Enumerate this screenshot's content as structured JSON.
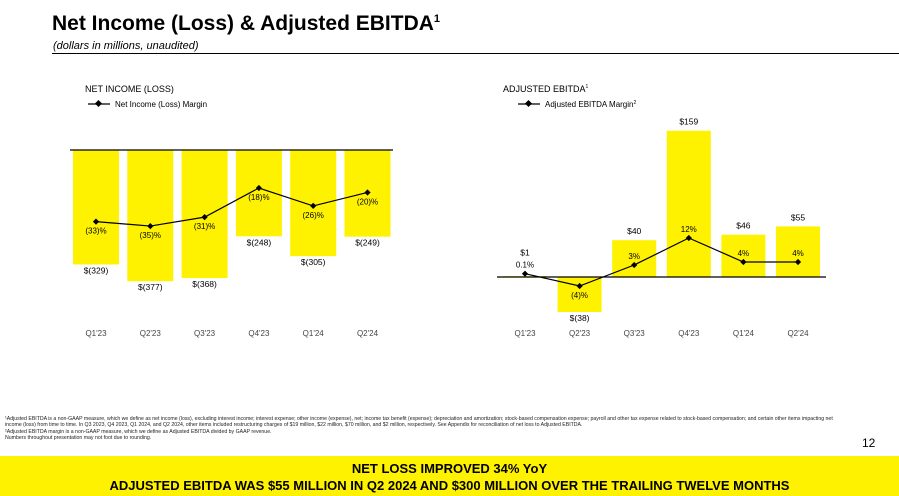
{
  "header": {
    "title": "Net Income (Loss) & Adjusted EBITDA",
    "title_sup": "1",
    "subtitle": "(dollars in millions, unaudited)"
  },
  "colors": {
    "bar": "#fff200",
    "line": "#000000"
  },
  "chart_data": [
    {
      "type": "bar",
      "title": "NET INCOME (LOSS)",
      "legend": "Net Income (Loss) Margin",
      "legend_placement": "top-left",
      "categories": [
        "Q1'23",
        "Q2'23",
        "Q3'23",
        "Q4'23",
        "Q1'24",
        "Q2'24"
      ],
      "series": [
        {
          "name": "Net Income (Loss)",
          "values": [
            -329,
            -377,
            -368,
            -248,
            -305,
            -249
          ],
          "labels": [
            "$(329)",
            "$(377)",
            "$(368)",
            "$(248)",
            "$(305)",
            "$(249)"
          ]
        },
        {
          "name": "Net Income (Loss) Margin",
          "type": "line",
          "values": [
            -33,
            -35,
            -31,
            -18,
            -26,
            -20
          ],
          "labels": [
            "(33)%",
            "(35)%",
            "(31)%",
            "(18)%",
            "(26)%",
            "(20)%"
          ]
        }
      ]
    },
    {
      "type": "bar",
      "title": "ADJUSTED EBITDA",
      "title_sup": "1",
      "legend": "Adjusted EBITDA Margin",
      "legend_sup": "2",
      "legend_placement": "top-left",
      "categories": [
        "Q1'23",
        "Q2'23",
        "Q3'23",
        "Q4'23",
        "Q1'24",
        "Q2'24"
      ],
      "series": [
        {
          "name": "Adjusted EBITDA",
          "values": [
            1,
            -38,
            40,
            159,
            46,
            55
          ],
          "labels": [
            "$1",
            "$(38)",
            "$40",
            "$159",
            "$46",
            "$55"
          ]
        },
        {
          "name": "Adjusted EBITDA Margin",
          "type": "line",
          "values": [
            0.1,
            -4,
            3,
            12,
            4,
            4
          ],
          "labels": [
            "0.1%",
            "(4)%",
            "3%",
            "12%",
            "4%",
            "4%"
          ]
        }
      ]
    }
  ],
  "footnotes": [
    "¹Adjusted EBITDA is a non-GAAP measure, which we define as net income (loss), excluding interest income; interest expense; other income (expense), net; income tax benefit (expense); depreciation and amortization; stock-based compensation expense; payroll and other tax expense related to stock-based compensation; and certain other items impacting net income (loss) from time to time. In Q3 2023, Q4 2023, Q1 2024, and Q2 2024, other items included restructuring charges of $19 million, $22 million, $70 million, and $2 million, respectively. See Appendix for reconciliation of net loss to Adjusted EBITDA.",
    "²Adjusted EBITDA margin is a non-GAAP measure, which we define as Adjusted EBITDA divided by GAAP revenue.",
    "Numbers throughout presentation may not foot due to rounding."
  ],
  "page_number": "12",
  "banner": {
    "line1": "NET LOSS IMPROVED 34% YoY",
    "line2": "ADJUSTED EBITDA WAS $55 MILLION IN Q2 2024 AND $300 MILLION OVER THE TRAILING TWELVE MONTHS"
  }
}
